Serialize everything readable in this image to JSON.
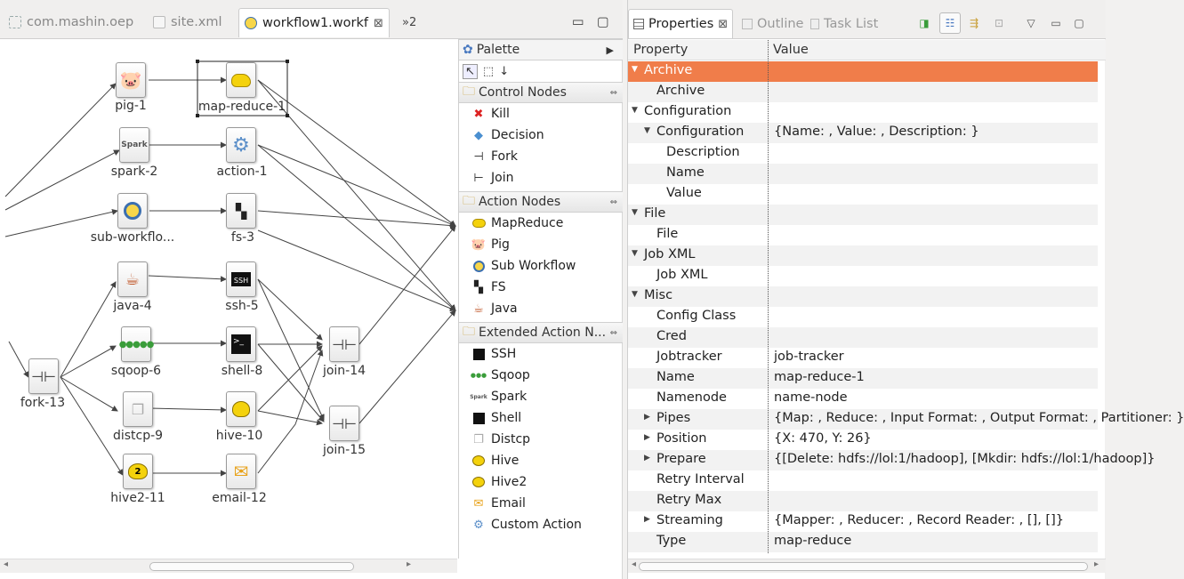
{
  "editor": {
    "tabs": [
      {
        "label": "com.mashin.oep",
        "icon": "project-icon"
      },
      {
        "label": "site.xml",
        "icon": "xml-file-icon"
      },
      {
        "label": "workflow1.workf",
        "icon": "workflow-file-icon"
      }
    ],
    "overflow": "»2",
    "close_glyph": "⊠",
    "min_glyph": "▭",
    "max_glyph": "▢"
  },
  "nodes": [
    {
      "id": "pig-1",
      "label": "pig-1",
      "icon": "pig-icon"
    },
    {
      "id": "map-reduce-1",
      "label": "map-reduce-1",
      "icon": "hadoop-elephant-icon"
    },
    {
      "id": "spark-2",
      "label": "spark-2",
      "icon": "spark-icon"
    },
    {
      "id": "action-1",
      "label": "action-1",
      "icon": "gear-icon"
    },
    {
      "id": "sub-workflow",
      "label": "sub-workflo...",
      "icon": "sub-workflow-icon"
    },
    {
      "id": "fs-3",
      "label": "fs-3",
      "icon": "fs-icon"
    },
    {
      "id": "java-4",
      "label": "java-4",
      "icon": "java-icon"
    },
    {
      "id": "ssh-5",
      "label": "ssh-5",
      "icon": "ssh-icon",
      "text": "SSH"
    },
    {
      "id": "sqoop-6",
      "label": "sqoop-6",
      "icon": "sqoop-icon"
    },
    {
      "id": "shell-8",
      "label": "shell-8",
      "icon": "shell-icon"
    },
    {
      "id": "join-14",
      "label": "join-14",
      "icon": "join-icon"
    },
    {
      "id": "fork-13",
      "label": "fork-13",
      "icon": "fork-icon"
    },
    {
      "id": "distcp-9",
      "label": "distcp-9",
      "icon": "distcp-icon"
    },
    {
      "id": "hive-10",
      "label": "hive-10",
      "icon": "hive-icon"
    },
    {
      "id": "join-15",
      "label": "join-15",
      "icon": "join-icon"
    },
    {
      "id": "hive2-11",
      "label": "hive2-11",
      "icon": "hive2-icon"
    },
    {
      "id": "email-12",
      "label": "email-12",
      "icon": "email-icon"
    }
  ],
  "palette": {
    "title": "Palette",
    "groups": [
      {
        "label": "Control Nodes",
        "items": [
          {
            "label": "Kill",
            "icon": "kill-icon"
          },
          {
            "label": "Decision",
            "icon": "decision-icon"
          },
          {
            "label": "Fork",
            "icon": "fork-icon"
          },
          {
            "label": "Join",
            "icon": "join-icon"
          }
        ]
      },
      {
        "label": "Action Nodes",
        "items": [
          {
            "label": "MapReduce",
            "icon": "hadoop-elephant-icon"
          },
          {
            "label": "Pig",
            "icon": "pig-icon"
          },
          {
            "label": "Sub Workflow",
            "icon": "sub-workflow-icon"
          },
          {
            "label": "FS",
            "icon": "fs-icon"
          },
          {
            "label": "Java",
            "icon": "java-icon"
          }
        ]
      },
      {
        "label": "Extended Action N...",
        "items": [
          {
            "label": "SSH",
            "icon": "ssh-icon"
          },
          {
            "label": "Sqoop",
            "icon": "sqoop-icon"
          },
          {
            "label": "Spark",
            "icon": "spark-icon"
          },
          {
            "label": "Shell",
            "icon": "shell-icon"
          },
          {
            "label": "Distcp",
            "icon": "distcp-icon"
          },
          {
            "label": "Hive",
            "icon": "hive-icon"
          },
          {
            "label": "Hive2",
            "icon": "hive2-icon"
          },
          {
            "label": "Email",
            "icon": "email-icon"
          },
          {
            "label": "Custom Action",
            "icon": "gear-icon"
          }
        ]
      }
    ]
  },
  "properties_view": {
    "tabs": [
      {
        "label": "Properties",
        "icon": "properties-icon"
      },
      {
        "label": "Outline",
        "icon": "outline-icon"
      },
      {
        "label": "Task List",
        "icon": "task-list-icon"
      }
    ],
    "columns": {
      "property": "Property",
      "value": "Value"
    },
    "rows": [
      {
        "name": "Archive",
        "value": "",
        "level": 0,
        "twisty": "open",
        "selected": true
      },
      {
        "name": "Archive",
        "value": "",
        "level": 1,
        "twisty": "none"
      },
      {
        "name": "Configuration",
        "value": "",
        "level": 0,
        "twisty": "open"
      },
      {
        "name": "Configuration",
        "value": "{Name: , Value: , Description: }",
        "level": 1,
        "twisty": "open"
      },
      {
        "name": "Description",
        "value": "",
        "level": 2,
        "twisty": "none"
      },
      {
        "name": "Name",
        "value": "",
        "level": 2,
        "twisty": "none"
      },
      {
        "name": "Value",
        "value": "",
        "level": 2,
        "twisty": "none"
      },
      {
        "name": "File",
        "value": "",
        "level": 0,
        "twisty": "open"
      },
      {
        "name": "File",
        "value": "",
        "level": 1,
        "twisty": "none"
      },
      {
        "name": "Job XML",
        "value": "",
        "level": 0,
        "twisty": "open"
      },
      {
        "name": "Job XML",
        "value": "",
        "level": 1,
        "twisty": "none"
      },
      {
        "name": "Misc",
        "value": "",
        "level": 0,
        "twisty": "open"
      },
      {
        "name": "Config Class",
        "value": "",
        "level": 1,
        "twisty": "none"
      },
      {
        "name": "Cred",
        "value": "",
        "level": 1,
        "twisty": "none"
      },
      {
        "name": "Jobtracker",
        "value": "job-tracker",
        "level": 1,
        "twisty": "none"
      },
      {
        "name": "Name",
        "value": "map-reduce-1",
        "level": 1,
        "twisty": "none"
      },
      {
        "name": "Namenode",
        "value": "name-node",
        "level": 1,
        "twisty": "none"
      },
      {
        "name": "Pipes",
        "value": "{Map: , Reduce: , Input Format: , Output Format: , Partitioner: }",
        "level": 1,
        "twisty": "closed"
      },
      {
        "name": "Position",
        "value": "{X: 470, Y: 26}",
        "level": 1,
        "twisty": "closed"
      },
      {
        "name": "Prepare",
        "value": "{[Delete: hdfs://lol:1/hadoop], [Mkdir: hdfs://lol:1/hadoop]}",
        "level": 1,
        "twisty": "closed"
      },
      {
        "name": "Retry Interval",
        "value": "",
        "level": 1,
        "twisty": "none"
      },
      {
        "name": "Retry Max",
        "value": "",
        "level": 1,
        "twisty": "none"
      },
      {
        "name": "Streaming",
        "value": "{Mapper: , Reducer: , Record Reader: , [], []}",
        "level": 1,
        "twisty": "closed"
      },
      {
        "name": "Type",
        "value": "map-reduce",
        "level": 1,
        "twisty": "none"
      }
    ]
  },
  "colors": {
    "selection": "#f07d4a",
    "accent": "#e8e8e8"
  }
}
